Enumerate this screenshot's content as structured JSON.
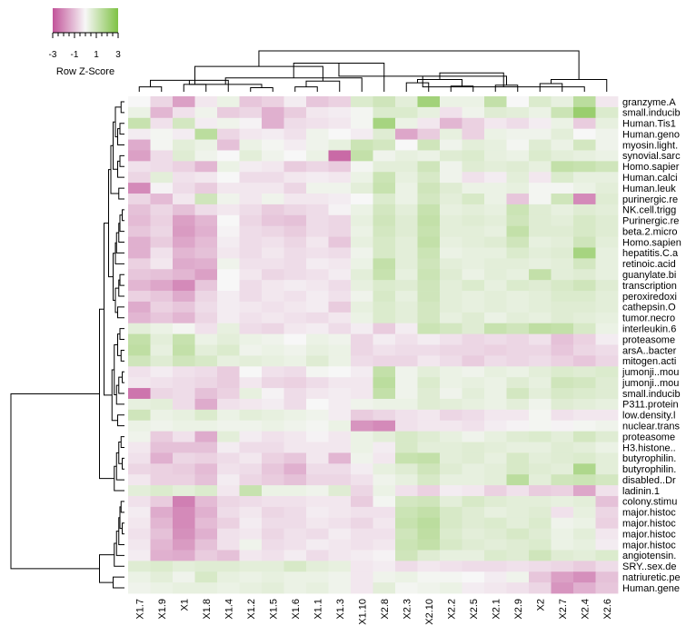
{
  "chart_data": {
    "type": "heatmap",
    "title": "",
    "xlabel": "",
    "ylabel": "",
    "color_key": {
      "title": "Row Z-Score",
      "ticks": [
        "-3",
        "-1",
        "1",
        "3"
      ],
      "range": [
        -3,
        3
      ],
      "low_color": "#c2549a",
      "mid_color": "#f7f7f7",
      "high_color": "#7ec244"
    },
    "columns": [
      "X1.7",
      "X1.9",
      "X1",
      "X1.8",
      "X1.4",
      "X1.2",
      "X1.5",
      "X1.6",
      "X1.1",
      "X1.3",
      "X1.10",
      "X2.8",
      "X2.3",
      "X2.10",
      "X2.2",
      "X2.5",
      "X2.1",
      "X2.9",
      "X2",
      "X2.7",
      "X2.4",
      "X2.6"
    ],
    "rows": [
      "granzyme.A",
      "small.inducib",
      "Human.Tis1",
      "Human.geno",
      "myosin.light.",
      "synovial.sarc",
      "Homo.sapier",
      "Human.calci",
      "Human.leuk",
      "purinergic.re",
      "NK.cell.trigg",
      "Purinergic.re",
      "beta.2.micro",
      "Homo.sapien",
      "hepatitis.C.a",
      "retinoic.acid",
      "guanylate.bi",
      "transcription",
      "peroxiredoxi",
      "cathepsin.O",
      "tumor.necro",
      "interleukin.6",
      "proteasome",
      "arsA..bacter",
      "mitogen.acti",
      "jumonji..mou",
      "jumonji..mou",
      "small.inducib",
      "P311.protein",
      "low.density.l",
      "nuclear.trans",
      "proteasome",
      "H3.histone..",
      "butyrophilin.",
      "butyrophilin.",
      "disabled..Dr",
      "ladinin.1",
      "colony.stimu",
      "major.histoc",
      "major.histoc",
      "major.histoc",
      "major.histoc",
      "angiotensin.",
      "SRY..sex.de",
      "natriuretic.pe",
      "Human.gene"
    ],
    "values": [
      [
        0.0,
        -0.6,
        -1.6,
        -0.3,
        0.3,
        -0.9,
        -0.7,
        -0.2,
        -0.9,
        -0.7,
        0.7,
        1.0,
        0.5,
        2.1,
        0.3,
        0.3,
        1.3,
        0.0,
        0.7,
        0.4,
        1.5,
        -0.3
      ],
      [
        0.3,
        -1.2,
        -0.4,
        0.2,
        -0.8,
        -0.6,
        -1.3,
        -0.8,
        -0.3,
        -0.2,
        0.1,
        0.7,
        0.7,
        0.4,
        -0.4,
        0.2,
        0.6,
        0.5,
        0.3,
        1.1,
        2.3,
        0.7
      ],
      [
        1.2,
        -0.4,
        0.9,
        -0.2,
        0.2,
        -0.1,
        -1.3,
        -0.5,
        -0.4,
        -0.3,
        0.1,
        2.0,
        0.3,
        -0.3,
        -1.2,
        -0.7,
        -0.3,
        -0.5,
        -0.2,
        0.3,
        -0.8,
        0.4
      ],
      [
        -0.2,
        0.1,
        -0.2,
        1.5,
        -0.6,
        -0.3,
        -0.2,
        -0.4,
        0.2,
        0.0,
        -0.2,
        0.6,
        -1.5,
        -0.8,
        0.4,
        -0.7,
        0.3,
        0.2,
        0.2,
        0.5,
        0.0,
        0.2
      ],
      [
        -1.4,
        0.1,
        0.5,
        0.3,
        -1.0,
        0.3,
        0.1,
        -0.2,
        0.2,
        0.4,
        1.1,
        0.9,
        0.0,
        1.0,
        0.2,
        0.5,
        0.4,
        0.1,
        0.6,
        0.3,
        0.9,
        0.2
      ],
      [
        -1.6,
        -0.5,
        0.6,
        0.2,
        0.0,
        0.5,
        0.2,
        0.0,
        0.3,
        -2.6,
        1.3,
        0.2,
        0.4,
        0.3,
        0.6,
        0.7,
        0.4,
        0.3,
        0.7,
        0.5,
        0.4,
        0.3
      ],
      [
        -0.4,
        -0.5,
        -0.7,
        -1.2,
        0.3,
        -0.2,
        -0.3,
        -0.8,
        -0.6,
        -0.8,
        0.1,
        0.5,
        0.5,
        1.0,
        0.2,
        0.6,
        0.5,
        0.6,
        0.4,
        1.3,
        1.2,
        1.0
      ],
      [
        -0.6,
        0.5,
        -0.4,
        -0.3,
        0.0,
        -0.5,
        -0.5,
        -0.3,
        -0.2,
        -0.3,
        0.3,
        1.1,
        0.4,
        0.8,
        0.2,
        -0.4,
        -0.2,
        0.5,
        -0.3,
        0.7,
        0.4,
        0.4
      ],
      [
        -2.0,
        -0.1,
        -0.5,
        -0.8,
        -0.3,
        -0.3,
        -0.3,
        -0.6,
        0.2,
        0.2,
        0.5,
        1.2,
        0.3,
        1.0,
        0.6,
        0.3,
        0.3,
        0.4,
        0.1,
        0.1,
        0.3,
        0.5
      ],
      [
        -0.6,
        -1.1,
        -0.3,
        1.0,
        0.2,
        -0.3,
        0.2,
        -0.3,
        -0.3,
        -0.2,
        0.0,
        0.7,
        0.3,
        0.9,
        0.5,
        0.8,
        0.3,
        -0.9,
        0.1,
        1.0,
        -2.0,
        0.6
      ],
      [
        -1.0,
        -0.6,
        -1.0,
        -0.5,
        -0.3,
        -0.5,
        -0.8,
        -0.6,
        -0.5,
        -0.1,
        0.3,
        0.9,
        0.5,
        1.2,
        0.4,
        0.5,
        0.4,
        1.1,
        0.6,
        0.4,
        0.6,
        0.5
      ],
      [
        -1.1,
        -0.7,
        -1.6,
        -1.2,
        0.0,
        -0.6,
        -0.9,
        -1.0,
        -0.5,
        -0.6,
        0.4,
        1.0,
        0.6,
        1.3,
        0.5,
        0.6,
        0.5,
        1.0,
        0.6,
        0.5,
        0.8,
        0.6
      ],
      [
        -0.9,
        -0.6,
        -1.7,
        -1.3,
        -0.1,
        -0.5,
        -0.6,
        -0.8,
        -0.5,
        -0.6,
        0.3,
        0.9,
        0.6,
        1.2,
        0.5,
        0.5,
        0.4,
        1.3,
        0.6,
        0.6,
        0.8,
        0.6
      ],
      [
        -1.3,
        -0.8,
        -1.5,
        -1.1,
        -0.2,
        -0.5,
        -0.4,
        -0.6,
        -0.3,
        -0.9,
        0.4,
        0.8,
        0.5,
        1.3,
        0.4,
        0.5,
        0.6,
        1.0,
        0.4,
        0.5,
        1.0,
        0.5
      ],
      [
        -1.3,
        -0.4,
        -1.2,
        -1.0,
        -0.3,
        -0.5,
        -0.3,
        -0.5,
        -0.4,
        -0.5,
        0.2,
        0.8,
        0.5,
        1.1,
        0.3,
        0.4,
        0.4,
        0.7,
        0.5,
        0.6,
        2.0,
        0.4
      ],
      [
        -0.7,
        -0.3,
        -1.4,
        -1.3,
        0.2,
        -0.4,
        -0.4,
        -0.5,
        -0.2,
        -0.3,
        0.3,
        1.3,
        0.5,
        1.0,
        0.5,
        0.4,
        0.5,
        0.5,
        0.4,
        0.5,
        0.9,
        0.4
      ],
      [
        -0.9,
        -1.0,
        -1.2,
        -1.6,
        0.0,
        -0.3,
        -0.6,
        -0.5,
        -0.4,
        -0.2,
        0.5,
        1.2,
        0.4,
        1.1,
        0.6,
        0.3,
        0.5,
        0.4,
        1.3,
        0.5,
        0.6,
        0.4
      ],
      [
        -1.2,
        -1.5,
        -2.0,
        -0.9,
        0.0,
        -0.5,
        -0.3,
        -0.2,
        -0.3,
        -0.5,
        0.4,
        0.7,
        0.6,
        1.0,
        0.5,
        0.7,
        0.4,
        0.7,
        0.6,
        0.8,
        1.0,
        0.6
      ],
      [
        -0.7,
        -0.9,
        -1.4,
        -0.6,
        -0.2,
        -0.5,
        -0.3,
        -0.4,
        -0.2,
        -0.4,
        0.2,
        0.8,
        0.4,
        1.0,
        0.5,
        0.4,
        0.5,
        0.4,
        0.5,
        0.7,
        0.7,
        0.5
      ],
      [
        -1.4,
        -0.7,
        -0.9,
        -0.5,
        -0.2,
        -0.3,
        -0.4,
        -0.3,
        -0.2,
        -0.8,
        0.4,
        0.7,
        0.5,
        0.9,
        0.5,
        0.4,
        0.5,
        0.4,
        0.5,
        0.6,
        0.6,
        0.5
      ],
      [
        -1.2,
        -0.9,
        -1.2,
        -0.6,
        -0.2,
        -0.4,
        -0.3,
        -0.4,
        -0.5,
        -0.3,
        0.3,
        0.7,
        0.5,
        0.9,
        0.4,
        0.6,
        0.3,
        0.5,
        0.4,
        0.6,
        0.5,
        0.4
      ],
      [
        0.5,
        0.3,
        0.1,
        -0.4,
        0.4,
        -0.5,
        -0.6,
        -0.3,
        -0.2,
        -0.5,
        -0.2,
        -0.8,
        -0.2,
        1.1,
        0.9,
        0.6,
        1.2,
        1.0,
        1.4,
        1.3,
        0.8,
        0.3
      ],
      [
        1.3,
        0.5,
        1.2,
        0.3,
        0.5,
        0.3,
        0.2,
        0.0,
        0.3,
        0.2,
        -0.6,
        -0.2,
        -0.4,
        -0.2,
        -0.4,
        -0.6,
        -0.5,
        -0.6,
        -0.4,
        -1.0,
        -0.7,
        -0.2
      ],
      [
        1.4,
        0.4,
        1.3,
        0.5,
        0.7,
        0.2,
        0.3,
        0.2,
        0.4,
        0.3,
        -0.6,
        -0.4,
        -0.5,
        -0.5,
        -0.6,
        -0.6,
        -0.7,
        -0.6,
        -0.6,
        -0.9,
        -0.6,
        -0.5
      ],
      [
        1.0,
        0.6,
        1.0,
        0.8,
        0.4,
        0.5,
        0.4,
        0.3,
        0.6,
        0.3,
        -0.5,
        -0.6,
        -0.6,
        -0.3,
        -0.5,
        -0.8,
        -0.5,
        -0.6,
        -0.5,
        -0.7,
        -0.9,
        -0.6
      ],
      [
        -0.4,
        -0.2,
        -0.4,
        -0.5,
        -0.8,
        0.0,
        -0.4,
        -0.5,
        0.1,
        0.0,
        -0.2,
        1.3,
        0.2,
        0.5,
        0.3,
        0.2,
        0.4,
        0.3,
        0.5,
        0.7,
        0.6,
        0.7
      ],
      [
        -0.3,
        -0.4,
        -0.5,
        -0.6,
        -0.8,
        -0.3,
        -0.6,
        -0.7,
        -0.5,
        -0.3,
        -0.3,
        1.5,
        0.2,
        0.7,
        0.3,
        0.4,
        0.3,
        0.6,
        0.4,
        1.0,
        0.9,
        0.6
      ],
      [
        -2.4,
        -0.6,
        -0.5,
        -1.0,
        -0.7,
        0.4,
        -0.1,
        -0.5,
        -0.3,
        -0.2,
        -0.3,
        1.3,
        0.2,
        0.6,
        0.2,
        0.5,
        0.3,
        0.9,
        0.5,
        0.8,
        0.7,
        0.6
      ],
      [
        0.4,
        0.5,
        -0.5,
        -1.4,
        -0.4,
        -0.3,
        -0.2,
        -0.5,
        0.0,
        -0.2,
        0.2,
        0.3,
        0.3,
        0.6,
        0.5,
        0.4,
        0.3,
        0.5,
        0.2,
        0.6,
        0.5,
        0.4
      ],
      [
        1.0,
        0.3,
        0.4,
        0.7,
        0.3,
        0.5,
        0.4,
        0.3,
        0.2,
        -0.2,
        -0.8,
        -0.6,
        -0.4,
        -0.3,
        -0.6,
        -0.5,
        -0.3,
        -0.3,
        0.1,
        -0.4,
        -0.3,
        -0.3
      ],
      [
        0.3,
        0.2,
        0.3,
        0.3,
        0.2,
        0.2,
        0.3,
        0.2,
        0.1,
        0.3,
        -1.8,
        -2.0,
        -0.4,
        -0.3,
        -0.3,
        -0.4,
        -0.2,
        -0.1,
        0.1,
        -0.1,
        0.1,
        0.2
      ],
      [
        0.2,
        -0.8,
        -0.4,
        -1.4,
        0.5,
        -0.2,
        -0.4,
        -0.3,
        -0.1,
        -0.3,
        0.3,
        0.5,
        0.8,
        0.6,
        0.4,
        0.2,
        0.4,
        0.6,
        0.7,
        0.5,
        0.9,
        0.6
      ],
      [
        -0.3,
        -1.0,
        -1.0,
        -1.0,
        -0.2,
        -0.5,
        -0.5,
        -0.3,
        -0.3,
        -0.3,
        0.3,
        -0.2,
        0.8,
        0.5,
        0.5,
        0.6,
        0.5,
        0.4,
        0.4,
        0.6,
        0.5,
        0.3
      ],
      [
        -0.4,
        -1.3,
        -0.6,
        -0.7,
        -0.5,
        -0.3,
        -0.7,
        -0.9,
        -0.3,
        -1.2,
        0.2,
        -0.3,
        1.2,
        1.3,
        0.5,
        0.6,
        0.4,
        0.8,
        0.5,
        0.6,
        0.7,
        0.5
      ],
      [
        -0.6,
        -0.7,
        -0.8,
        -1.1,
        -0.4,
        -0.5,
        -0.9,
        -1.3,
        -0.5,
        -0.5,
        -0.2,
        0.4,
        0.6,
        1.0,
        0.6,
        0.4,
        0.5,
        0.8,
        0.6,
        0.5,
        1.8,
        0.5
      ],
      [
        -0.3,
        -0.7,
        -0.7,
        -1.0,
        -0.2,
        -0.6,
        -0.8,
        -1.0,
        -0.6,
        -0.6,
        -0.4,
        0.2,
        0.4,
        0.8,
        0.4,
        0.4,
        0.5,
        1.5,
        0.5,
        1.0,
        1.1,
        0.9
      ],
      [
        0.5,
        0.7,
        0.5,
        0.7,
        -0.3,
        1.2,
        0.3,
        0.3,
        0.2,
        0.6,
        -0.6,
        0.3,
        -0.4,
        -0.7,
        -0.2,
        -0.3,
        -0.7,
        -0.4,
        -0.8,
        -0.7,
        -1.5,
        -0.4
      ],
      [
        -0.4,
        -0.8,
        -2.2,
        -1.1,
        -0.6,
        -0.5,
        -0.4,
        -0.4,
        -0.3,
        -0.3,
        -0.8,
        0.1,
        0.9,
        1.0,
        0.5,
        0.8,
        0.6,
        0.5,
        0.5,
        0.4,
        0.5,
        -1.0
      ],
      [
        -0.2,
        -1.4,
        -2.0,
        -1.3,
        -0.5,
        -0.3,
        -0.6,
        -0.5,
        -0.2,
        -0.3,
        -0.4,
        -0.4,
        1.1,
        1.3,
        0.8,
        0.6,
        0.4,
        0.5,
        0.6,
        -0.4,
        0.4,
        -0.6
      ],
      [
        -0.3,
        -1.2,
        -2.0,
        -1.1,
        -0.7,
        -0.2,
        -0.5,
        -0.5,
        -0.3,
        -0.4,
        -0.6,
        -0.3,
        1.2,
        1.5,
        0.8,
        0.6,
        0.7,
        0.5,
        0.7,
        0.2,
        0.3,
        -0.7
      ],
      [
        -0.4,
        -1.0,
        -1.9,
        -1.3,
        -0.4,
        -0.3,
        -0.6,
        -0.4,
        -0.5,
        -0.2,
        -0.4,
        -0.4,
        1.0,
        1.4,
        0.7,
        0.5,
        0.6,
        0.8,
        0.6,
        0.3,
        0.5,
        -0.3
      ],
      [
        -0.3,
        -1.2,
        -1.7,
        -1.0,
        -0.4,
        0.2,
        -0.5,
        -0.4,
        -0.2,
        -0.3,
        -0.4,
        -0.3,
        1.1,
        1.3,
        0.8,
        0.6,
        0.5,
        0.6,
        0.7,
        0.3,
        0.4,
        -0.2
      ],
      [
        -0.2,
        -1.3,
        -1.4,
        -0.8,
        -1.0,
        -0.3,
        -0.4,
        -0.2,
        -0.5,
        -0.3,
        -0.2,
        -0.1,
        1.0,
        0.6,
        0.4,
        0.4,
        0.7,
        0.6,
        1.0,
        0.6,
        0.5,
        0.7
      ],
      [
        0.6,
        0.7,
        0.5,
        0.6,
        0.6,
        0.5,
        0.5,
        0.8,
        0.5,
        0.4,
        -0.3,
        -0.2,
        -0.5,
        -0.3,
        -0.4,
        -0.5,
        -0.5,
        -0.4,
        -0.5,
        -0.6,
        -0.8,
        -0.5
      ],
      [
        0.3,
        0.5,
        0.2,
        0.8,
        0.4,
        0.3,
        0.4,
        0.3,
        0.3,
        0.2,
        -0.3,
        0.2,
        0.3,
        0.1,
        0.1,
        0.0,
        -0.2,
        0.2,
        -0.9,
        -1.6,
        -1.9,
        -1.0
      ],
      [
        0.2,
        0.3,
        0.4,
        0.4,
        0.3,
        0.4,
        0.5,
        0.3,
        0.4,
        0.2,
        -0.3,
        0.5,
        0.1,
        0.2,
        0.3,
        -0.2,
        -0.3,
        -0.4,
        -0.6,
        -1.8,
        -1.3,
        -0.9
      ]
    ]
  }
}
